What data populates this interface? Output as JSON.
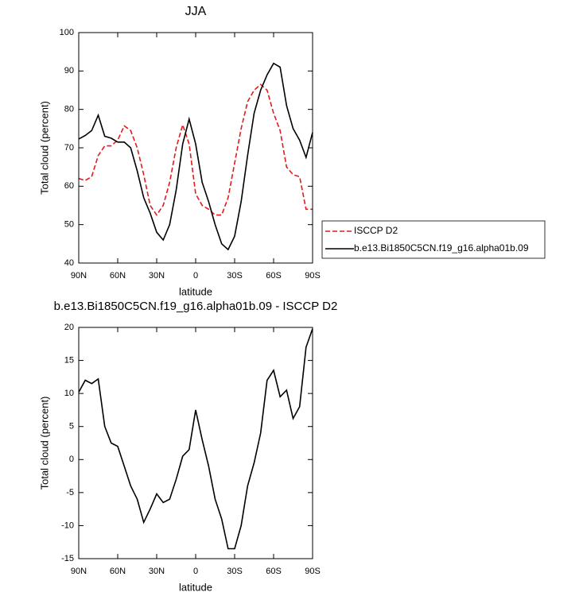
{
  "chart_data": [
    {
      "type": "line",
      "title": "JJA",
      "xlabel": "latitude",
      "ylabel": "Total cloud (percent)",
      "x": [
        90,
        85,
        80,
        75,
        70,
        65,
        60,
        55,
        50,
        45,
        40,
        35,
        30,
        25,
        20,
        15,
        10,
        5,
        0,
        -5,
        -10,
        -15,
        -20,
        -25,
        -30,
        -35,
        -40,
        -45,
        -50,
        -55,
        -60,
        -65,
        -70,
        -75,
        -80,
        -85,
        -90
      ],
      "xlim": [
        90,
        -90
      ],
      "xticks": [
        {
          "value": 90,
          "label": "90N"
        },
        {
          "value": 60,
          "label": "60N"
        },
        {
          "value": 30,
          "label": "30N"
        },
        0,
        {
          "value": -30,
          "label": "30S"
        },
        {
          "value": -60,
          "label": "60S"
        },
        {
          "value": -90,
          "label": "90S"
        }
      ],
      "ylim": [
        40,
        100
      ],
      "yticks": [
        40,
        50,
        60,
        70,
        80,
        90,
        100
      ],
      "legend": "right",
      "series": [
        {
          "name": "ISCCP D2",
          "color": "#e41a1c",
          "linestyle": "dashed",
          "values": [
            62,
            61.5,
            62.5,
            68,
            70.5,
            70.5,
            72,
            75.7,
            74.5,
            70,
            63,
            55,
            52.5,
            55,
            61,
            70,
            76,
            71,
            58,
            55,
            54,
            52.5,
            52.5,
            57,
            66,
            75,
            82,
            85,
            86.5,
            85,
            79,
            74.5,
            65,
            63,
            62.5,
            54,
            54
          ]
        },
        {
          "name": "b.e13.Bi1850C5CN.f19_g16.alpha01b.09",
          "color": "#000000",
          "linestyle": "solid",
          "values": [
            72.3,
            73.2,
            74.5,
            78.5,
            73,
            72.5,
            71.5,
            71.5,
            70,
            64,
            57,
            53,
            48,
            46,
            50,
            59,
            71,
            77.5,
            71,
            61,
            56,
            50,
            45,
            43.5,
            47,
            56,
            68,
            79,
            85,
            89,
            92,
            91,
            81,
            75,
            72,
            67.5,
            74
          ]
        }
      ]
    },
    {
      "type": "line",
      "title": "b.e13.Bi1850C5CN.f19_g16.alpha01b.09 - ISCCP D2",
      "xlabel": "latitude",
      "ylabel": "Total cloud (percent)",
      "x": [
        90,
        85,
        80,
        75,
        70,
        65,
        60,
        55,
        50,
        45,
        40,
        35,
        30,
        25,
        20,
        15,
        10,
        5,
        0,
        -5,
        -10,
        -15,
        -20,
        -25,
        -30,
        -35,
        -40,
        -45,
        -50,
        -55,
        -60,
        -65,
        -70,
        -75,
        -80,
        -85,
        -90
      ],
      "xlim": [
        90,
        -90
      ],
      "xticks": [
        {
          "value": 90,
          "label": "90N"
        },
        {
          "value": 60,
          "label": "60N"
        },
        {
          "value": 30,
          "label": "30N"
        },
        0,
        {
          "value": -30,
          "label": "30S"
        },
        {
          "value": -60,
          "label": "60S"
        },
        {
          "value": -90,
          "label": "90S"
        }
      ],
      "ylim": [
        -15,
        20
      ],
      "yticks": [
        -15,
        -10,
        -5,
        0,
        5,
        10,
        15,
        20
      ],
      "series": [
        {
          "color": "#000000",
          "linestyle": "solid",
          "values": [
            10.2,
            12,
            11.5,
            12.2,
            5,
            2.5,
            2,
            -1,
            -4,
            -6,
            -9.5,
            -7.5,
            -5.2,
            -6.5,
            -6,
            -3,
            0.5,
            1.5,
            7.5,
            3,
            -1,
            -6,
            -9,
            -13.5,
            -13.5,
            -10,
            -4,
            -0.5,
            4,
            12,
            13.5,
            9.5,
            10.5,
            6.2,
            8,
            17,
            19.8
          ]
        }
      ]
    }
  ]
}
